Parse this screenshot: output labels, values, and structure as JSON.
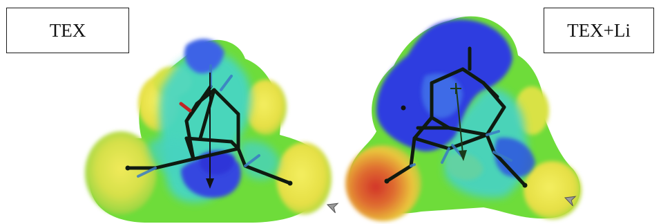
{
  "panels": {
    "left": {
      "label": "TEX"
    },
    "right": {
      "label": "TEX+Li"
    }
  },
  "colors": {
    "negative_potential": "#2a3ee0",
    "mid_potential": "#43d8d0",
    "neutral_potential": "#6edc3a",
    "weak_positive_potential": "#e8e040",
    "positive_potential": "#d93a2a",
    "bond_color": "#0f1a10",
    "dipole_arrow": "#111111"
  },
  "icons": [
    "cursor-arrow-icon",
    "cursor-arrow-icon"
  ]
}
